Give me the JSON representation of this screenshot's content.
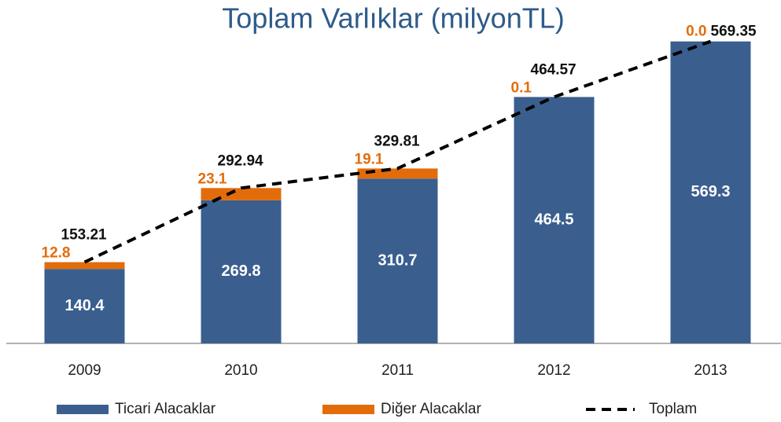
{
  "chart_data": {
    "type": "stacked_bar_line",
    "title": "Toplam Varlıklar (milyonTL)",
    "categories": [
      "2009",
      "2010",
      "2011",
      "2012",
      "2013"
    ],
    "series": [
      {
        "name": "Ticari Alacaklar",
        "color": "#3a5f8f",
        "type": "bar",
        "values": [
          140.4,
          269.8,
          310.7,
          464.5,
          569.3
        ]
      },
      {
        "name": "Diğer Alacaklar",
        "color": "#e36c0a",
        "type": "bar",
        "values": [
          12.8,
          23.1,
          19.1,
          0.1,
          0.0
        ],
        "value_labels": [
          "12.8",
          "23.1",
          "19.1",
          "0.1",
          "0.0"
        ]
      },
      {
        "name": "Toplam",
        "color": "#000000",
        "type": "line",
        "values": [
          153.21,
          292.94,
          329.81,
          464.57,
          569.35
        ]
      }
    ],
    "ylim": [
      0,
      600
    ]
  }
}
